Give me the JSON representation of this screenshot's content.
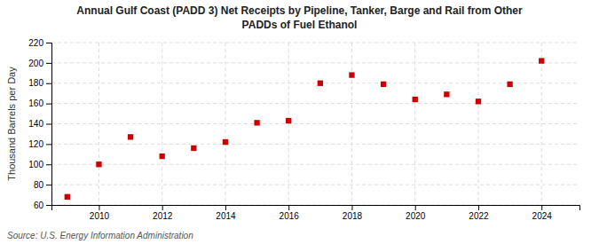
{
  "chart_data": {
    "type": "scatter",
    "title": "Annual Gulf Coast (PADD 3) Net Receipts by Pipeline, Tanker, Barge and Rail from Other",
    "subtitle": "PADDs of Fuel Ethanol",
    "y_label": "Thousand Barrels per Day",
    "annotations": [
      "Source: U.S. Energy Information Administration"
    ],
    "x": [
      2009,
      2010,
      2011,
      2012,
      2013,
      2014,
      2015,
      2016,
      2017,
      2018,
      2019,
      2020,
      2021,
      2022,
      2023,
      2024
    ],
    "values": [
      68,
      100,
      127,
      108,
      116,
      122,
      141,
      143,
      180,
      188,
      179,
      164,
      169,
      162,
      179,
      202
    ],
    "color": "#cc0000",
    "marker": "square",
    "xlim": [
      2008.5,
      2025.2
    ],
    "xticks": [
      2010,
      2012,
      2014,
      2016,
      2018,
      2020,
      2022,
      2024
    ],
    "ylim": [
      60,
      220
    ],
    "yticks": [
      60,
      80,
      100,
      120,
      140,
      160,
      180,
      200,
      220
    ],
    "grid": true
  }
}
